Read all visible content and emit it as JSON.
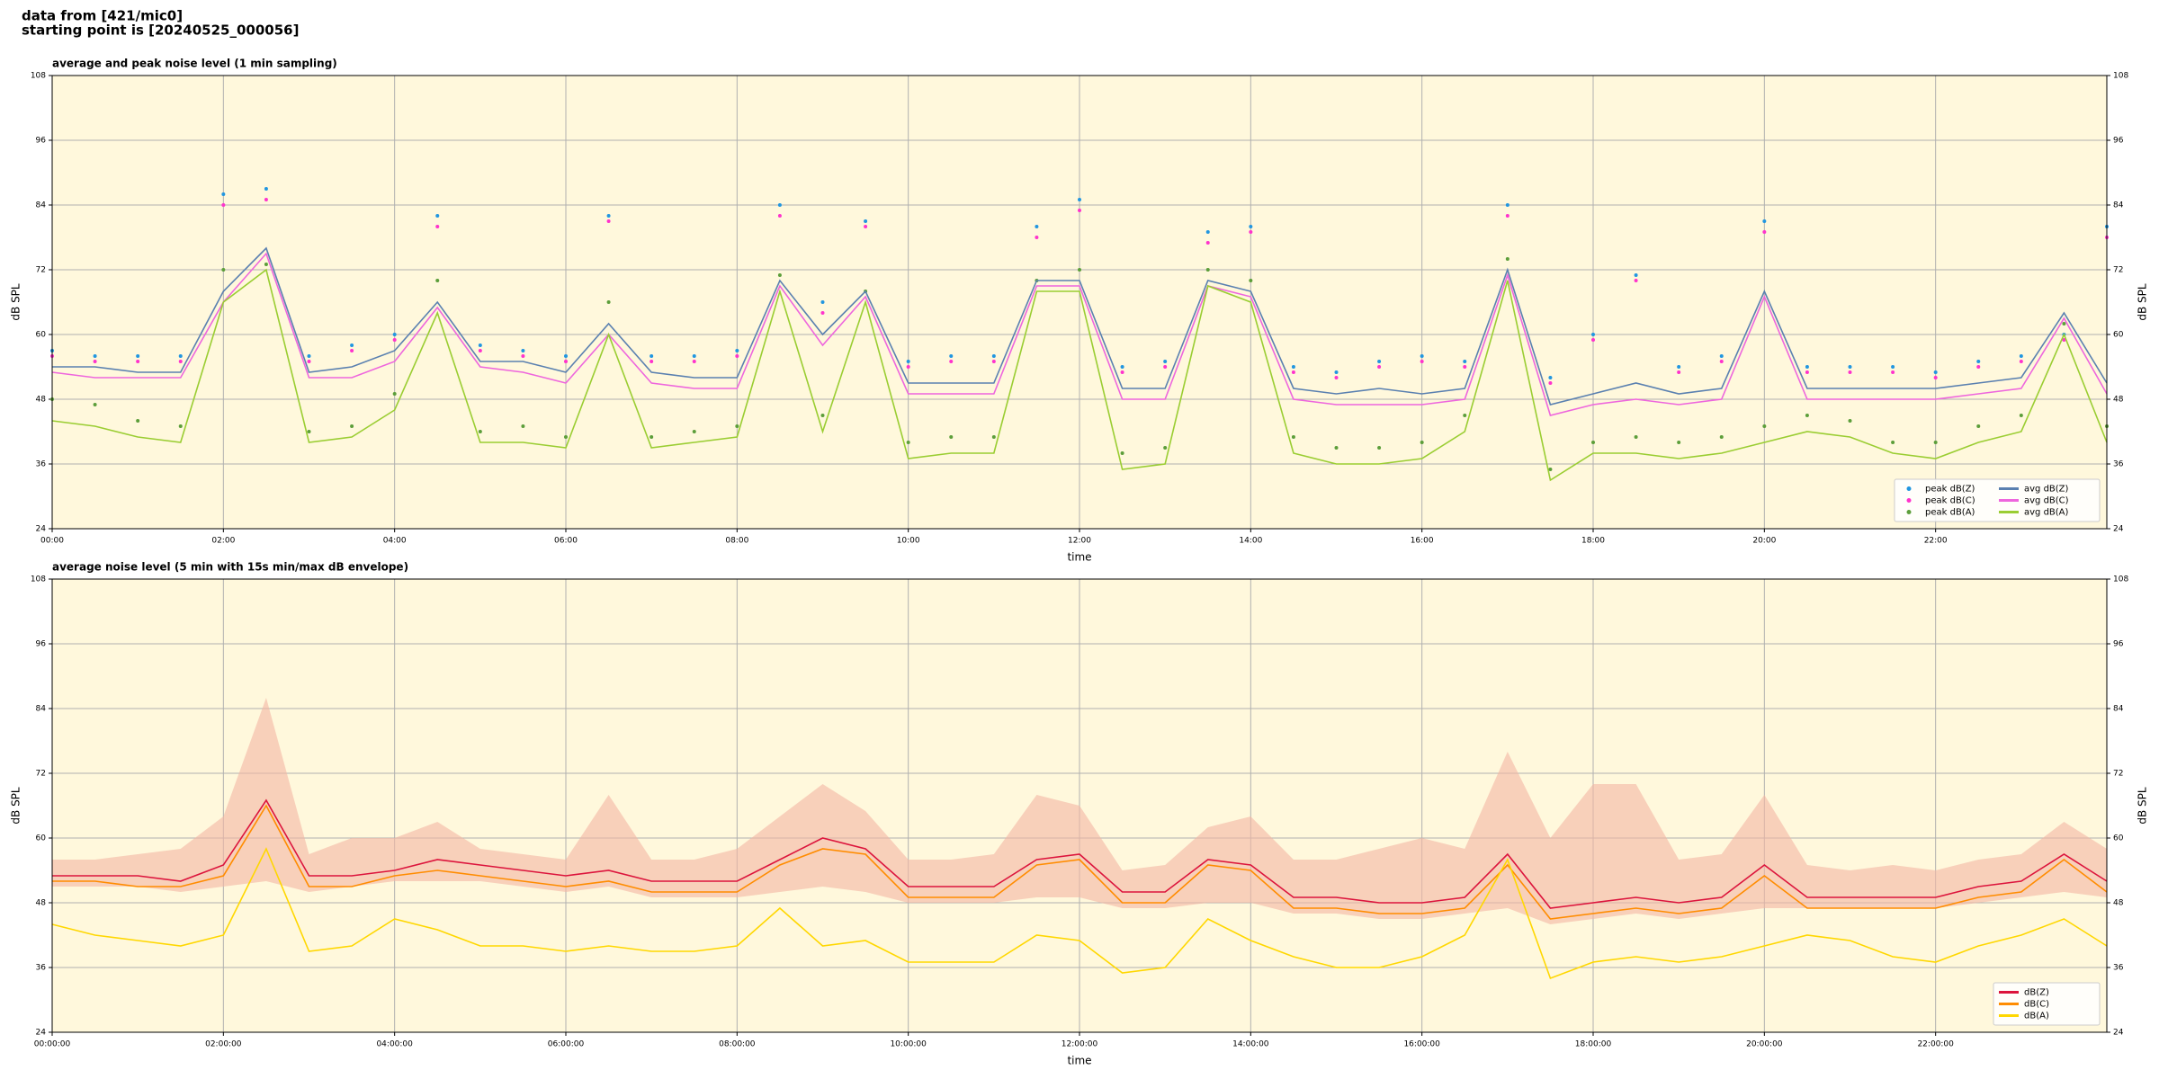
{
  "header": {
    "line1": "data from [421/mic0]",
    "line2": "starting point is [20240525_000056]"
  },
  "chart_data": [
    {
      "type": "line",
      "title": "average and peak noise level (1 min sampling)",
      "xlabel": "time",
      "ylabel": "dB SPL",
      "x": [
        0,
        0.5,
        1,
        1.5,
        2,
        2.5,
        3,
        3.5,
        4,
        4.5,
        5,
        5.5,
        6,
        6.5,
        7,
        7.5,
        8,
        8.5,
        9,
        9.5,
        10,
        10.5,
        11,
        11.5,
        12,
        12.5,
        13,
        13.5,
        14,
        14.5,
        15,
        15.5,
        16,
        16.5,
        17,
        17.5,
        18,
        18.5,
        19,
        19.5,
        20,
        20.5,
        21,
        21.5,
        22,
        22.5,
        23,
        23.5,
        24
      ],
      "xlim": [
        0,
        24
      ],
      "xticks": [
        {
          "value": 0,
          "label": "00:00"
        },
        {
          "value": 2,
          "label": "02:00"
        },
        {
          "value": 4,
          "label": "04:00"
        },
        {
          "value": 6,
          "label": "06:00"
        },
        {
          "value": 8,
          "label": "08:00"
        },
        {
          "value": 10,
          "label": "10:00"
        },
        {
          "value": 12,
          "label": "12:00"
        },
        {
          "value": 14,
          "label": "14:00"
        },
        {
          "value": 16,
          "label": "16:00"
        },
        {
          "value": 18,
          "label": "18:00"
        },
        {
          "value": 20,
          "label": "20:00"
        },
        {
          "value": 22,
          "label": "22:00"
        }
      ],
      "ylim": [
        24,
        108
      ],
      "yticks": [
        24,
        36,
        48,
        60,
        72,
        84,
        96,
        108
      ],
      "grid": true,
      "legend": "lower right",
      "background": "#fff8dc",
      "series": [
        {
          "name": "peak dB(Z)",
          "style": "points",
          "color": "#2196e0",
          "values": [
            57,
            56,
            56,
            56,
            86,
            87,
            56,
            58,
            60,
            82,
            58,
            57,
            56,
            82,
            56,
            56,
            57,
            84,
            66,
            81,
            55,
            56,
            56,
            80,
            85,
            54,
            55,
            79,
            80,
            54,
            53,
            55,
            56,
            55,
            84,
            52,
            60,
            71,
            54,
            56,
            81,
            54,
            54,
            54,
            53,
            55,
            56,
            60,
            80
          ]
        },
        {
          "name": "peak dB(C)",
          "style": "points",
          "color": "#ff33cc",
          "values": [
            56,
            55,
            55,
            55,
            84,
            85,
            55,
            57,
            59,
            80,
            57,
            56,
            55,
            81,
            55,
            55,
            56,
            82,
            64,
            80,
            54,
            55,
            55,
            78,
            83,
            53,
            54,
            77,
            79,
            53,
            52,
            54,
            55,
            54,
            82,
            51,
            59,
            70,
            53,
            55,
            79,
            53,
            53,
            53,
            52,
            54,
            55,
            59,
            78
          ]
        },
        {
          "name": "peak dB(A)",
          "style": "points",
          "color": "#5c9e3a",
          "values": [
            48,
            47,
            44,
            43,
            72,
            73,
            42,
            43,
            49,
            70,
            42,
            43,
            41,
            66,
            41,
            42,
            43,
            71,
            45,
            68,
            40,
            41,
            41,
            70,
            72,
            38,
            39,
            72,
            70,
            41,
            39,
            39,
            40,
            45,
            74,
            35,
            40,
            41,
            40,
            41,
            43,
            45,
            44,
            40,
            40,
            43,
            45,
            62,
            43
          ]
        },
        {
          "name": "avg dB(Z)",
          "style": "line",
          "color": "#5a80b0",
          "values": [
            54,
            54,
            53,
            53,
            68,
            76,
            53,
            54,
            57,
            66,
            55,
            55,
            53,
            62,
            53,
            52,
            52,
            70,
            60,
            68,
            51,
            51,
            51,
            70,
            70,
            50,
            50,
            70,
            68,
            50,
            49,
            50,
            49,
            50,
            72,
            47,
            49,
            51,
            49,
            50,
            68,
            50,
            50,
            50,
            50,
            51,
            52,
            64,
            51
          ]
        },
        {
          "name": "avg dB(C)",
          "style": "line",
          "color": "#ee66dd",
          "values": [
            53,
            52,
            52,
            52,
            66,
            75,
            52,
            52,
            55,
            65,
            54,
            53,
            51,
            60,
            51,
            50,
            50,
            69,
            58,
            67,
            49,
            49,
            49,
            69,
            69,
            48,
            48,
            69,
            67,
            48,
            47,
            47,
            47,
            48,
            71,
            45,
            47,
            48,
            47,
            48,
            67,
            48,
            48,
            48,
            48,
            49,
            50,
            63,
            49
          ]
        },
        {
          "name": "avg dB(A)",
          "style": "line",
          "color": "#9acd32",
          "values": [
            44,
            43,
            41,
            40,
            66,
            72,
            40,
            41,
            46,
            64,
            40,
            40,
            39,
            60,
            39,
            40,
            41,
            68,
            42,
            66,
            37,
            38,
            38,
            68,
            68,
            35,
            36,
            69,
            66,
            38,
            36,
            36,
            37,
            42,
            70,
            33,
            38,
            38,
            37,
            38,
            40,
            42,
            41,
            38,
            37,
            40,
            42,
            60,
            40
          ]
        }
      ]
    },
    {
      "type": "line",
      "title": "average noise level (5 min with 15s min/max dB envelope)",
      "xlabel": "time",
      "ylabel": "dB SPL",
      "x": [
        0,
        0.5,
        1,
        1.5,
        2,
        2.5,
        3,
        3.5,
        4,
        4.5,
        5,
        5.5,
        6,
        6.5,
        7,
        7.5,
        8,
        8.5,
        9,
        9.5,
        10,
        10.5,
        11,
        11.5,
        12,
        12.5,
        13,
        13.5,
        14,
        14.5,
        15,
        15.5,
        16,
        16.5,
        17,
        17.5,
        18,
        18.5,
        19,
        19.5,
        20,
        20.5,
        21,
        21.5,
        22,
        22.5,
        23,
        23.5,
        24
      ],
      "xlim": [
        0,
        24
      ],
      "xticks": [
        {
          "value": 0,
          "label": "00:00:00"
        },
        {
          "value": 2,
          "label": "02:00:00"
        },
        {
          "value": 4,
          "label": "04:00:00"
        },
        {
          "value": 6,
          "label": "06:00:00"
        },
        {
          "value": 8,
          "label": "08:00:00"
        },
        {
          "value": 10,
          "label": "10:00:00"
        },
        {
          "value": 12,
          "label": "12:00:00"
        },
        {
          "value": 14,
          "label": "14:00:00"
        },
        {
          "value": 16,
          "label": "16:00:00"
        },
        {
          "value": 18,
          "label": "18:00:00"
        },
        {
          "value": 20,
          "label": "20:00:00"
        },
        {
          "value": 22,
          "label": "22:00:00"
        }
      ],
      "ylim": [
        24,
        108
      ],
      "yticks": [
        24,
        36,
        48,
        60,
        72,
        84,
        96,
        108
      ],
      "grid": true,
      "legend": "lower right",
      "background": "#fff8dc",
      "envelope": {
        "color": "#f4b6a4",
        "low": [
          51,
          51,
          51,
          50,
          51,
          52,
          50,
          51,
          52,
          52,
          52,
          51,
          50,
          51,
          49,
          49,
          49,
          50,
          51,
          50,
          48,
          48,
          48,
          49,
          49,
          47,
          47,
          48,
          48,
          46,
          46,
          45,
          45,
          46,
          47,
          44,
          45,
          46,
          45,
          46,
          47,
          47,
          47,
          47,
          47,
          48,
          49,
          50,
          49
        ],
        "high": [
          56,
          56,
          57,
          58,
          64,
          86,
          57,
          60,
          60,
          63,
          58,
          57,
          56,
          68,
          56,
          56,
          58,
          64,
          70,
          65,
          56,
          56,
          57,
          68,
          66,
          54,
          55,
          62,
          64,
          56,
          56,
          58,
          60,
          58,
          76,
          60,
          70,
          70,
          56,
          57,
          68,
          55,
          54,
          55,
          54,
          56,
          57,
          63,
          58
        ]
      },
      "series": [
        {
          "name": "dB(Z)",
          "style": "line",
          "color": "#dc143c",
          "values": [
            53,
            53,
            53,
            52,
            55,
            67,
            53,
            53,
            54,
            56,
            55,
            54,
            53,
            54,
            52,
            52,
            52,
            56,
            60,
            58,
            51,
            51,
            51,
            56,
            57,
            50,
            50,
            56,
            55,
            49,
            49,
            48,
            48,
            49,
            57,
            47,
            48,
            49,
            48,
            49,
            55,
            49,
            49,
            49,
            49,
            51,
            52,
            57,
            52
          ]
        },
        {
          "name": "dB(C)",
          "style": "line",
          "color": "#ff8c00",
          "values": [
            52,
            52,
            51,
            51,
            53,
            66,
            51,
            51,
            53,
            54,
            53,
            52,
            51,
            52,
            50,
            50,
            50,
            55,
            58,
            57,
            49,
            49,
            49,
            55,
            56,
            48,
            48,
            55,
            54,
            47,
            47,
            46,
            46,
            47,
            55,
            45,
            46,
            47,
            46,
            47,
            53,
            47,
            47,
            47,
            47,
            49,
            50,
            56,
            50
          ]
        },
        {
          "name": "dB(A)",
          "style": "line",
          "color": "#ffd700",
          "values": [
            44,
            42,
            41,
            40,
            42,
            58,
            39,
            40,
            45,
            43,
            40,
            40,
            39,
            40,
            39,
            39,
            40,
            47,
            40,
            41,
            37,
            37,
            37,
            42,
            41,
            35,
            36,
            45,
            41,
            38,
            36,
            36,
            38,
            42,
            56,
            34,
            37,
            38,
            37,
            38,
            40,
            42,
            41,
            38,
            37,
            40,
            42,
            45,
            40
          ]
        }
      ]
    }
  ]
}
